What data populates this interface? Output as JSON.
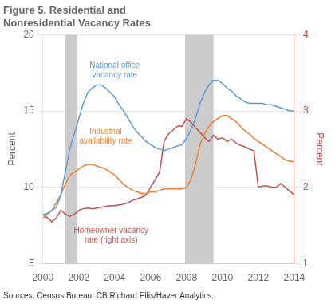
{
  "chart_data": {
    "type": "line",
    "title": "Figure 5. Residential and\nNonresidential Vacancy Rates",
    "y_label": "Percent",
    "y2_label": "Percent",
    "source": "Sources: Census Bureau; CB Richard Ellis/Haver Analytics.",
    "xlim": [
      2000,
      2014
    ],
    "xticks": [
      2000,
      2002,
      2004,
      2006,
      2008,
      2010,
      2012,
      2014
    ],
    "ylim": [
      5,
      20
    ],
    "yticks": [
      5,
      10,
      15,
      20
    ],
    "y2lim": [
      1,
      4
    ],
    "y2ticks": [
      1,
      2,
      3,
      4
    ],
    "grid": true,
    "shaded_bands": {
      "ranges": [
        [
          2001.25,
          2001.92
        ],
        [
          2007.92,
          2009.5
        ]
      ],
      "color": "#cccccc"
    },
    "x": [
      2000.0,
      2000.25,
      2000.5,
      2000.75,
      2001.0,
      2001.25,
      2001.5,
      2001.75,
      2002.0,
      2002.25,
      2002.5,
      2002.75,
      2003.0,
      2003.25,
      2003.5,
      2003.75,
      2004.0,
      2004.25,
      2004.5,
      2004.75,
      2005.0,
      2005.25,
      2005.5,
      2005.75,
      2006.0,
      2006.25,
      2006.5,
      2006.75,
      2007.0,
      2007.25,
      2007.5,
      2007.75,
      2008.0,
      2008.25,
      2008.5,
      2008.75,
      2009.0,
      2009.25,
      2009.5,
      2009.75,
      2010.0,
      2010.25,
      2010.5,
      2010.75,
      2011.0,
      2011.25,
      2011.5,
      2011.75,
      2012.0,
      2012.25,
      2012.5,
      2012.75,
      2013.0,
      2013.25,
      2013.5,
      2013.75,
      2014.0
    ],
    "series": [
      {
        "color": "#5b9bd5",
        "values": [
          8.2,
          8.3,
          8.5,
          8.7,
          9.5,
          11.0,
          12.5,
          13.5,
          14.5,
          15.5,
          16.2,
          16.5,
          16.7,
          16.7,
          16.5,
          16.2,
          15.9,
          15.4,
          15.0,
          14.5,
          14.0,
          13.6,
          13.3,
          13.0,
          12.8,
          12.6,
          12.5,
          12.4,
          12.5,
          12.6,
          12.7,
          12.8,
          13.2,
          13.8,
          14.5,
          15.5,
          16.2,
          16.7,
          17.0,
          17.0,
          16.8,
          16.5,
          16.3,
          16.0,
          15.8,
          15.6,
          15.5,
          15.5,
          15.5,
          15.5,
          15.4,
          15.4,
          15.3,
          15.2,
          15.1,
          15.0,
          15.0
        ]
      },
      {
        "color": "#ed7d31",
        "values": [
          8.0,
          8.2,
          8.5,
          9.0,
          9.5,
          10.2,
          10.8,
          11.0,
          11.2,
          11.4,
          11.5,
          11.5,
          11.4,
          11.3,
          11.2,
          11.0,
          10.8,
          10.5,
          10.2,
          10.0,
          9.8,
          9.7,
          9.6,
          9.6,
          9.7,
          9.7,
          9.8,
          9.9,
          9.9,
          9.9,
          9.9,
          9.9,
          10.0,
          10.5,
          11.5,
          12.8,
          13.5,
          14.0,
          14.3,
          14.5,
          14.7,
          14.7,
          14.5,
          14.3,
          14.0,
          13.7,
          13.5,
          13.2,
          13.0,
          12.8,
          12.6,
          12.4,
          12.2,
          12.0,
          11.8,
          11.7,
          11.7
        ]
      },
      {
        "color": "#c0504d",
        "axis": "y2",
        "values": [
          1.65,
          1.6,
          1.55,
          1.6,
          1.7,
          1.65,
          1.62,
          1.65,
          1.7,
          1.72,
          1.73,
          1.72,
          1.73,
          1.74,
          1.75,
          1.76,
          1.76,
          1.77,
          1.78,
          1.8,
          1.83,
          1.85,
          1.87,
          1.9,
          2.0,
          2.1,
          2.2,
          2.6,
          2.7,
          2.75,
          2.8,
          2.8,
          2.9,
          2.85,
          2.78,
          2.72,
          2.65,
          2.6,
          2.68,
          2.63,
          2.65,
          2.6,
          2.63,
          2.58,
          2.55,
          2.53,
          2.5,
          2.48,
          2.0,
          2.02,
          2.02,
          2.0,
          2.0,
          2.05,
          2.0,
          1.95,
          1.9
        ]
      }
    ],
    "annotations": [
      {
        "text": "National office\nvacancy rate",
        "x": 2004.0,
        "y": 18.2,
        "color": "#5b9bd5"
      },
      {
        "text": "Industrial\navailability rate",
        "x": 2003.5,
        "y": 13.9,
        "color": "#ed7d31"
      },
      {
        "text": "Homeowner vacancy\nrate (right axis)",
        "x": 2003.8,
        "y": 7.4,
        "color": "#c0504d"
      }
    ]
  }
}
